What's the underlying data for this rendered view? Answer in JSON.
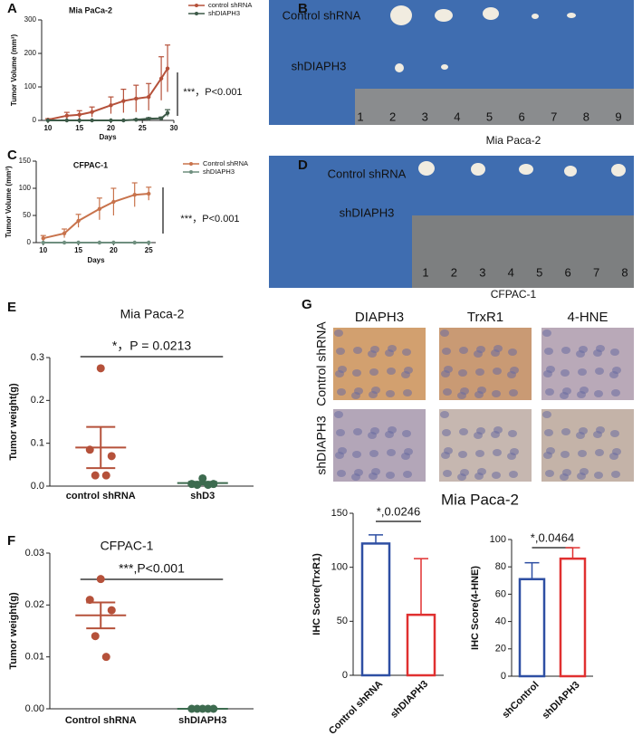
{
  "panel_letters": [
    "A",
    "B",
    "C",
    "D",
    "E",
    "F",
    "G"
  ],
  "chart_data": [
    {
      "type": "line",
      "title": "Mia PaCa-2",
      "x_label": "Days",
      "y_label": "Tumor Volume (mm³)",
      "x": [
        10,
        13,
        15,
        17,
        20,
        22,
        24,
        26,
        28,
        29
      ],
      "xlim": [
        9,
        30
      ],
      "xticks": [
        10,
        15,
        20,
        25,
        30
      ],
      "ylim": [
        0,
        300
      ],
      "yticks": [
        0,
        100,
        200,
        300
      ],
      "series": [
        {
          "name": "control shRNA",
          "color": "#b5513a",
          "values": [
            2,
            14,
            17,
            25,
            45,
            58,
            65,
            70,
            125,
            155
          ],
          "errors": [
            3,
            10,
            12,
            15,
            25,
            35,
            40,
            40,
            65,
            70
          ]
        },
        {
          "name": "shDIAPH3",
          "color": "#3d5a48",
          "values": [
            0,
            0,
            0,
            0,
            0,
            0,
            2,
            5,
            6,
            22
          ],
          "errors": [
            0,
            0,
            0,
            0,
            0,
            0,
            2,
            3,
            4,
            10
          ]
        }
      ],
      "annotation": "***，P<0.001"
    },
    {
      "type": "line",
      "title": "CFPAC-1",
      "x_label": "Days",
      "y_label": "Tumor Volume (mm³)",
      "x": [
        10,
        13,
        15,
        18,
        20,
        23,
        25
      ],
      "xlim": [
        9,
        26
      ],
      "xticks": [
        10,
        15,
        20,
        25
      ],
      "ylim": [
        0,
        150
      ],
      "yticks": [
        0,
        50,
        100,
        150
      ],
      "series": [
        {
          "name": "Control shRNA",
          "color": "#c8734c",
          "values": [
            8,
            17,
            40,
            62,
            75,
            88,
            90
          ],
          "errors": [
            5,
            8,
            12,
            20,
            25,
            22,
            12
          ]
        },
        {
          "name": "shDIAPH3",
          "color": "#6f8f7f",
          "values": [
            0,
            0,
            0,
            0,
            0,
            0,
            0
          ],
          "errors": [
            0,
            0,
            0,
            0,
            0,
            0,
            0
          ]
        }
      ],
      "annotation": "***，P<0.001"
    },
    {
      "type": "scatter",
      "title": "Mia Paca-2",
      "y_label": "Tumor weight(g)",
      "categories": [
        "control shRNA",
        "shD3"
      ],
      "ylim": [
        0,
        0.3
      ],
      "yticks": [
        {
          "value": 0,
          "label": "0.0"
        },
        0.1,
        0.2,
        0.3
      ],
      "groups": [
        {
          "color": "#b5513a",
          "values": [
            0.275,
            0.085,
            0.07,
            0.025,
            0.025
          ],
          "mean": 0.09,
          "sem": 0.048
        },
        {
          "color": "#3d6b4f",
          "values": [
            0.018,
            0.005,
            0.005,
            0.003,
            0.003
          ],
          "mean": 0.007,
          "sem": 0.003
        }
      ],
      "annotation": "*，P = 0.0213"
    },
    {
      "type": "scatter",
      "title": "CFPAC-1",
      "y_label": "Tumor weight(g)",
      "categories": [
        "Control shRNA",
        "shDIAPH3"
      ],
      "ylim": [
        0,
        0.03
      ],
      "yticks": [
        {
          "value": 0,
          "label": "0.00"
        },
        0.01,
        0.02,
        0.03
      ],
      "groups": [
        {
          "color": "#b5513a",
          "values": [
            0.025,
            0.021,
            0.019,
            0.014,
            0.01
          ],
          "mean": 0.018,
          "sem": 0.0025
        },
        {
          "color": "#3d6b4f",
          "values": [
            0,
            0,
            0,
            0,
            0
          ],
          "mean": 0,
          "sem": 0
        }
      ],
      "annotation": "***,P<0.001"
    },
    {
      "type": "bar",
      "y_label": "IHC Score(TrxR1)",
      "categories": [
        "Control shRNA",
        "shDIAPH3"
      ],
      "values": [
        122,
        56
      ],
      "errors": [
        8,
        52
      ],
      "colors": [
        "#2e4fa3",
        "#e03030"
      ],
      "ylim": [
        0,
        150
      ],
      "yticks": [
        0,
        50,
        100,
        150
      ],
      "annotation": "*,0.0246"
    },
    {
      "type": "bar",
      "y_label": "IHC Score(4-HNE)",
      "categories": [
        "shControl",
        "shDIAPH3"
      ],
      "values": [
        71,
        86
      ],
      "errors": [
        12,
        8
      ],
      "colors": [
        "#2e4fa3",
        "#e03030"
      ],
      "ylim": [
        0,
        100
      ],
      "yticks": [
        0,
        20,
        40,
        60,
        80,
        100
      ],
      "annotation": "*,0.0464"
    }
  ],
  "panel_b": {
    "labels": [
      "Control shRNA",
      "shDIAPH3"
    ],
    "ruler": [
      1,
      2,
      3,
      4,
      5,
      6,
      7,
      8,
      9
    ],
    "caption": "Mia Paca-2"
  },
  "panel_d": {
    "labels": [
      "Control shRNA",
      "shDIAPH3"
    ],
    "ruler": [
      1,
      2,
      3,
      4,
      5,
      6,
      7,
      8
    ],
    "caption": "CFPAC-1"
  },
  "panel_g": {
    "columns": [
      "DIAPH3",
      "TrxR1",
      "4-HNE"
    ],
    "rows": [
      "Control shRNA",
      "shDIAPH3"
    ],
    "title": "Mia Paca-2"
  }
}
